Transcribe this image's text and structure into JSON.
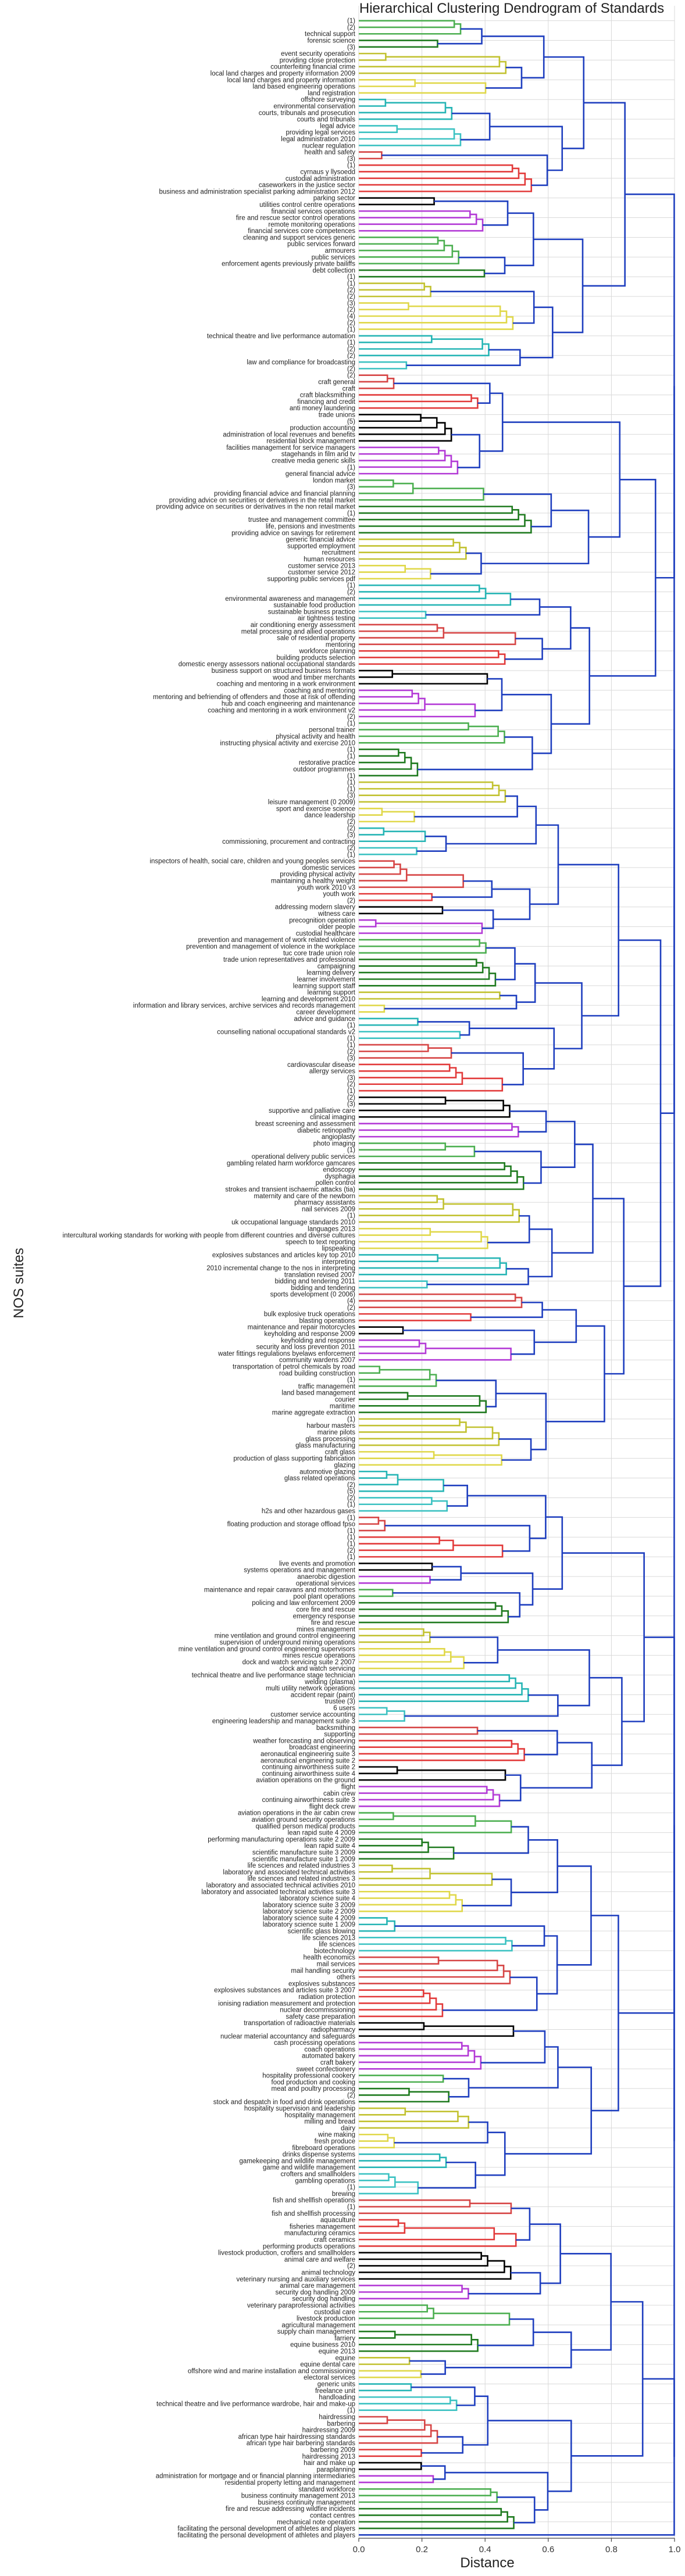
{
  "chart_data": {
    "type": "dendrogram",
    "title": "Hierarchical Clustering Dendrogram of Standards",
    "xlabel": "Distance",
    "ylabel": "NOS suites",
    "xlim": [
      0.0,
      1.0
    ],
    "xticks": [
      "0.0",
      "0.2",
      "0.4",
      "0.6",
      "0.8",
      "1.0"
    ],
    "grid": true,
    "orientation": "horizontal",
    "colors": [
      "#4caf50",
      "#1f7a1f",
      "#c2c231",
      "#e0d84a",
      "#26b5b5",
      "#3cc2c2",
      "#d64545",
      "#e23a3a",
      "#000000",
      "#b33ad6",
      "#1f3fbf"
    ],
    "leaves": [
      "(1)",
      "(2)",
      "technical support",
      "forensic science",
      "(3)",
      "event security operations",
      "providing close protection",
      "counterfeiting financial crime",
      "local land charges and property information 2009",
      "local land charges and property information",
      "land based engineering operations",
      "land registration",
      "offshore surveying",
      "environmental conservation",
      "courts, tribunals and prosecution",
      "courts and tribunals",
      "legal advice",
      "providing legal services",
      "legal administration 2010",
      "nuclear regulation",
      "health and safety",
      "(3)",
      "(1)",
      "cyrnaus y llysoedd",
      "custodial administration",
      "caseworkers in the justice sector",
      "business and administration specialist parking administration 2012",
      "parking sector",
      "utilities control centre operations",
      "financial services operations",
      "fire and rescue sector control operations",
      "remote monitoring operations",
      "financial services core competences",
      "cleaning and support services generic",
      "public services forward",
      "armourers",
      "public services",
      "enforcement agents previously private bailiffs",
      "debt collection",
      "(1)",
      "(1)",
      "(2)",
      "(2)",
      "(3)",
      "(2)",
      "(4)",
      "(2)",
      "(1)",
      "technical theatre and live performance automation",
      "(1)",
      "(2)",
      "(2)",
      "law and compliance for broadcasting",
      "(2)",
      "(2)",
      "craft general",
      "craft",
      "craft blacksmithing",
      "financing and credit",
      "anti money laundering",
      "trade unions",
      "(5)",
      "production accounting",
      "administration of local revenues and benefits",
      "residential block management",
      "facilities management for service managers",
      "stagehands in film and tv",
      "creative media generic skills",
      "(1)",
      "general financial advice",
      "london market",
      "(3)",
      "providing financial advice and financial planning",
      "providing advice on securities or derivatives in the retail market",
      "providing advice on securities or derivatives in the non retail market",
      "(1)",
      "trustee and management committee",
      "life, pensions and investments",
      "providing advice on savings for retirement",
      "generic financial advice",
      "supported employment",
      "recruitment",
      "human resources",
      "customer service 2013",
      "customer service 2012",
      "supporting public services pdf",
      "(1)",
      "(2)",
      "environmental awareness and management",
      "sustainable food production",
      "sustainable business practice",
      "air tightness testing",
      "air conditioning energy assessment",
      "metal processing and allied operations",
      "sale of residential property",
      "mentoring",
      "workforce planning",
      "building products selection",
      "domestic energy assessors national occupational standards",
      "business support on structured business formats",
      "wood and timber merchants",
      "coaching and mentoring in a work environment",
      "coaching and mentoring",
      "mentoring and befriending of offenders and those at risk of offending",
      "hub and coach engineering and maintenance",
      "coaching and mentoring in a work environment v2",
      "(2)",
      "(1)",
      "personal trainer",
      "physical activity and health",
      "instructing physical activity and exercise 2010",
      "(1)",
      "(1)",
      "restorative practice",
      "outdoor programmes",
      "(1)",
      "(1)",
      "(1)",
      "(3)",
      "leisure management (0 2009)",
      "sport and exercise science",
      "dance leadership",
      "(2)",
      "(2)",
      "(3)",
      "commissioning, procurement and contracting",
      "(2)",
      "(1)",
      "inspectors of health, social care, children and young peoples services",
      "domestic services",
      "providing physical activity",
      "maintaining a healthy weight",
      "youth work 2010 v3",
      "youth work",
      "(2)",
      "addressing modern slavery",
      "witness care",
      "precognition operation",
      "older people",
      "custodial healthcare",
      "prevention and management of work related violence",
      "prevention and management of violence in the workplace",
      "tuc core trade union role",
      "trade union representatives and professional",
      "campaigning",
      "learning delivery",
      "learner involvement",
      "learning support staff",
      "learning support",
      "learning and development 2010",
      "information and library services, archive services and records management",
      "career development",
      "advice and guidance",
      "(1)",
      "counselling national occupational standards v2",
      "(1)",
      "(1)",
      "(2)",
      "(3)",
      "cardiovascular disease",
      "allergy services",
      "(3)",
      "(2)",
      "(1)",
      "(2)",
      "(3)",
      "supportive and palliative care",
      "clinical imaging",
      "breast screening and assessment",
      "diabetic retinopathy",
      "angioplasty",
      "photo imaging",
      "(1)",
      "operational delivery public services",
      "gambling related harm workforce gamcares",
      "endoscopy",
      "dysphagia",
      "pollen control",
      "strokes and transient ischaemic attacks (tia)",
      "maternity and care of the newborn",
      "pharmacy assistants",
      "nail services 2009",
      "(1)",
      "uk occupational language standards 2010",
      "languages 2013",
      "intercultural working standards for working with people from different countries and diverse cultures",
      "speech to text reporting",
      "lipspeaking",
      "explosives substances and articles key top 2010",
      "interpreting",
      "2010 incremental change to the nos in interpreting",
      "translation revised 2007",
      "bidding and tendering 2011",
      "bidding and tendering",
      "sports development (0 2006)",
      "(4)",
      "(2)",
      "bulk explosive truck operations",
      "blasting operations",
      "maintenance and repair motorcycles",
      "keyholding and response 2009",
      "keyholding and response",
      "security and loss prevention 2011",
      "water fittings regulations byelaws enforcement",
      "community wardens 2007",
      "transportation of petrol chemicals by road",
      "road building construction",
      "(1)",
      "traffic management",
      "land based management",
      "courier",
      "maritime",
      "marine aggregate extraction",
      "(1)",
      "harbour masters",
      "marine pilots",
      "glass processing",
      "glass manufacturing",
      "craft glass",
      "production of glass supporting fabrication",
      "glazing",
      "automotive glazing",
      "glass related operations",
      "(2)",
      "(5)",
      "(2)",
      "(1)",
      "h2s and other hazardous gases",
      "(1)",
      "floating production and storage offload fpso",
      "(1)",
      "(1)",
      "(1)",
      "(2)",
      "(1)",
      "live events and promotion",
      "systems operations and management",
      "anaerobic digestion",
      "operational services",
      "maintenance and repair caravans and motorhomes",
      "pool plant operations",
      "policing and law enforcement 2009",
      "core fire and rescue",
      "emergency response",
      "fire and rescue",
      "mines management",
      "mine ventilation and ground control engineering",
      "supervision of underground mining operations",
      "mine ventilation and ground control engineering supervisors",
      "mines rescue operations",
      "dock and watch servicing suite 2 2007",
      "clock and watch servicing",
      "technical theatre and live performance stage technician",
      "welding (plasma)",
      "multi utility network operations",
      "accident repair (paint)",
      "trustee (3)",
      "6 users",
      "customer service accounting",
      "engineering leadership and management suite 3",
      "backsmithing",
      "supporting",
      "weather forecasting and observing",
      "broadcast engineering",
      "aeronautical engineering suite 3",
      "aeronautical engineering suite 2",
      "continuing airworthiness suite 2",
      "continuing airworthiness suite 4",
      "aviation operations on the ground",
      "flight",
      "cabin crew",
      "continuing airworthiness suite 3",
      "flight deck crew",
      "aviation operations in the air cabin crew",
      "aviation ground security operations",
      "qualified person medical products",
      "lean rapid suite 4 2009",
      "performing manufacturing operations suite 2 2009",
      "lean rapid suite 4",
      "scientific manufacture suite 3 2009",
      "scientific manufacture suite 1 2009",
      "life sciences and related industries 3",
      "laboratory and associated technical activities",
      "life sciences and related industries 3",
      "laboratory and associated technical activities 2010",
      "laboratory and associated technical activities suite 3",
      "laboratory science suite 4",
      "laboratory science suite 3 2009",
      "laboratory science suite 2 2009",
      "laboratory science suite 4 2009",
      "laboratory science suite 1 2009",
      "scientific glass blowing",
      "life sciences 2013",
      "life sciences",
      "biotechnology",
      "health economics",
      "mail services",
      "mail handling security",
      "others",
      "explosives substances",
      "explosives substances and articles suite 3 2007",
      "radiation protection",
      "ionising radiation measurement and protection",
      "nuclear decommissioning",
      "safety case preparation",
      "transportation of radioactive materials",
      "radiopharmacy",
      "nuclear material accountancy and safeguards",
      "cash processing operations",
      "coach operations",
      "automated bakery",
      "craft bakery",
      "sweet confectionery",
      "hospitality professional cookery",
      "food production and cooking",
      "meat and poultry processing",
      "(2)",
      "stock and despatch in food and drink operations",
      "hospitality supervision and leadership",
      "hospitality management",
      "milling and bread",
      "dairy",
      "wine making",
      "fresh produce",
      "fibreboard operations",
      "drinks dispense systems",
      "gamekeeping and wildlife management",
      "game and wildlife management",
      "crofters and smallholders",
      "gambling operations",
      "(1)",
      "brewing",
      "fish and shellfish operations",
      "(1)",
      "fish and shellfish processing",
      "aquaculture",
      "fisheries management",
      "manufacturing ceramics",
      "craft ceramics",
      "performing products operations",
      "livestock production, crofters and smallholders",
      "animal care and welfare",
      "(2)",
      "animal technology",
      "veterinary nursing and auxiliary services",
      "animal care management",
      "security dog handling 2009",
      "security dog handling",
      "veterinary paraprofessional activities",
      "custodial care",
      "livestock production",
      "agricultural management",
      "supply chain management",
      "farriery",
      "equine business 2010",
      "equine 2013",
      "equine",
      "equine dental care",
      "offshore wind and marine installation and commissioning",
      "electoral services",
      "generic units",
      "freelance unit",
      "handloading",
      "technical theatre and live performance wardrobe, hair and make-up",
      "(1)",
      "hairdressing",
      "barbering",
      "hairdressing 2009",
      "african type hair hairdressing standards",
      "african type hair barbering standards",
      "barbering 2009",
      "hairdressing 2013",
      "hair and make up",
      "paraplanning",
      "administration for mortgage and or financial planning intermediaries",
      "residential property letting and management",
      "standard workforce",
      "business continuity management 2013",
      "business continuity management",
      "fire and rescue addressing wildfire incidents",
      "contact centres",
      "mechanical note operation",
      "facilitating the personal development of athletes and players",
      "facilitating the personal development of athletes and players"
    ]
  }
}
